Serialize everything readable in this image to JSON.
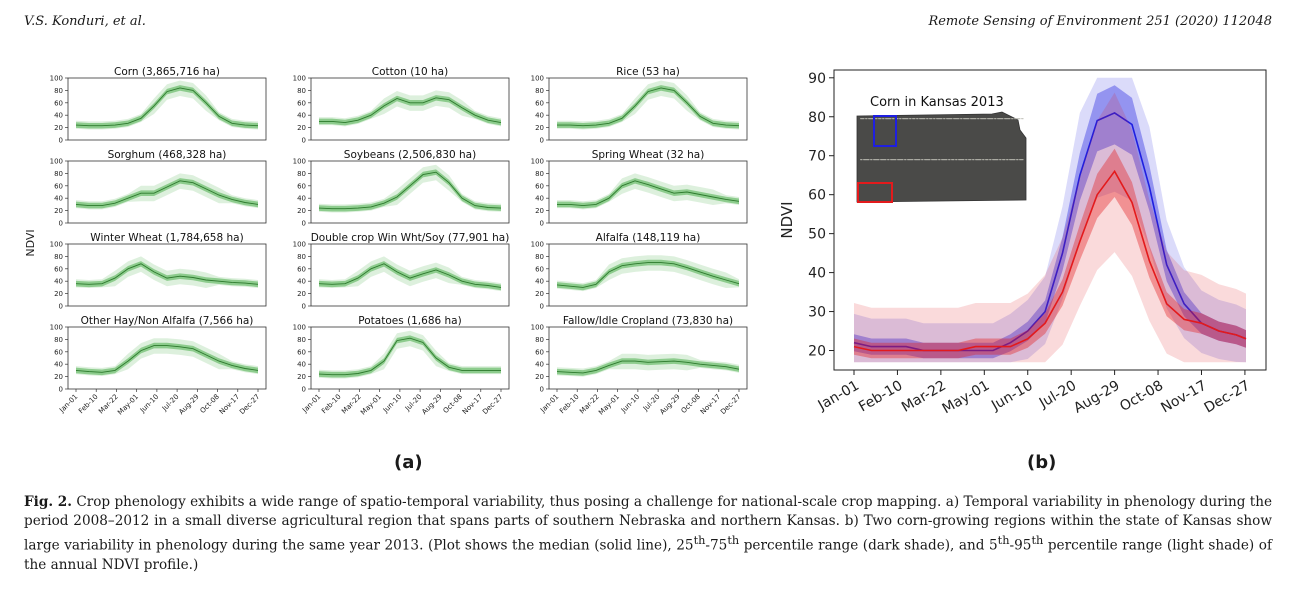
{
  "header": {
    "authors": "V.S. Konduri, et al.",
    "journal": "Remote Sensing of Environment 251 (2020) 112048"
  },
  "panels": {
    "a": "(a)",
    "b": "(b)"
  },
  "caption": {
    "fig_label": "Fig. 2.",
    "text_1": " Crop phenology exhibits a wide range of spatio-temporal variability, thus posing a challenge for national-scale crop mapping. a) Temporal variability in phenology during the period 2008–2012 in a small diverse agricultural region that spans parts of southern Nebraska and northern Kansas. b) Two corn-growing regions within the state of Kansas show large variability in phenology during the same year 2013. (Plot shows the median (solid line), 25",
    "sup_th_1": "th",
    "text_2": "-75",
    "sup_th_2": "th",
    "text_3": " percentile range (dark shade), and 5",
    "sup_th_3": "th",
    "text_4": "-95",
    "sup_th_4": "th",
    "text_5": " percentile range (light shade) of the annual NDVI profile.)"
  },
  "colors": {
    "green": "#2ca02c",
    "blue": "#1f1fe0",
    "red": "#e31a1c"
  },
  "chart_data": [
    {
      "type": "area",
      "layout": "grid-3x4",
      "ylabel": "NDVI",
      "ylim": [
        0,
        100
      ],
      "yticks": [
        0,
        20,
        40,
        60,
        80,
        100
      ],
      "xticks": [
        "Jan-01",
        "Feb-10",
        "Mar-22",
        "May-01",
        "Jun-10",
        "Jul-20",
        "Aug-29",
        "Oct-08",
        "Nov-17",
        "Dec-27"
      ],
      "panels": [
        {
          "title": "Corn (3,865,716 ha)",
          "median": [
            24,
            23,
            23,
            24,
            27,
            35,
            55,
            78,
            84,
            80,
            60,
            38,
            27,
            24,
            23
          ]
        },
        {
          "title": "Cotton (10 ha)",
          "median": [
            30,
            30,
            28,
            32,
            40,
            55,
            67,
            60,
            60,
            68,
            65,
            52,
            40,
            32,
            28
          ]
        },
        {
          "title": "Rice (53 ha)",
          "median": [
            24,
            24,
            23,
            24,
            27,
            35,
            55,
            78,
            84,
            80,
            60,
            38,
            27,
            24,
            23
          ]
        },
        {
          "title": "Sorghum (468,328 ha)",
          "median": [
            30,
            28,
            28,
            32,
            40,
            48,
            48,
            58,
            68,
            65,
            55,
            45,
            38,
            33,
            30
          ]
        },
        {
          "title": "Soybeans (2,506,830 ha)",
          "median": [
            24,
            23,
            23,
            24,
            26,
            32,
            42,
            60,
            78,
            82,
            65,
            40,
            28,
            25,
            24
          ]
        },
        {
          "title": "Spring Wheat (32 ha)",
          "median": [
            30,
            30,
            28,
            30,
            40,
            60,
            68,
            62,
            55,
            48,
            50,
            46,
            42,
            38,
            35
          ]
        },
        {
          "title": "Winter Wheat (1,784,658 ha)",
          "median": [
            36,
            35,
            36,
            45,
            60,
            68,
            55,
            45,
            48,
            46,
            42,
            40,
            38,
            37,
            35
          ]
        },
        {
          "title": "Double crop Win Wht/Soy (77,901 ha)",
          "median": [
            36,
            35,
            36,
            45,
            60,
            68,
            55,
            45,
            52,
            58,
            50,
            40,
            35,
            33,
            30
          ]
        },
        {
          "title": "Alfalfa (148,119 ha)",
          "median": [
            34,
            32,
            30,
            35,
            55,
            65,
            68,
            70,
            70,
            68,
            62,
            55,
            48,
            42,
            36
          ]
        },
        {
          "title": "Other Hay/Non Alfalfa (7,566 ha)",
          "median": [
            30,
            28,
            27,
            30,
            45,
            62,
            70,
            70,
            68,
            65,
            55,
            45,
            38,
            33,
            30
          ]
        },
        {
          "title": "Potatoes (1,686 ha)",
          "median": [
            24,
            23,
            23,
            25,
            30,
            45,
            78,
            82,
            75,
            50,
            35,
            30,
            30,
            30,
            30
          ]
        },
        {
          "title": "Fallow/Idle Cropland (73,830 ha)",
          "median": [
            28,
            27,
            26,
            30,
            38,
            45,
            45,
            43,
            44,
            45,
            43,
            40,
            38,
            36,
            32
          ]
        }
      ]
    },
    {
      "type": "line",
      "ylabel": "NDVI",
      "ylim": [
        15,
        92
      ],
      "yticks": [
        20,
        30,
        40,
        50,
        60,
        70,
        80,
        90
      ],
      "xticks": [
        "Jan-01",
        "Feb-10",
        "Mar-22",
        "May-01",
        "Jun-10",
        "Jul-20",
        "Aug-29",
        "Oct-08",
        "Nov-17",
        "Dec-27"
      ],
      "inset_title": "Corn in Kansas 2013",
      "x": [
        0,
        16,
        32,
        48,
        64,
        80,
        96,
        112,
        128,
        144,
        160,
        176,
        192,
        208,
        224,
        240,
        256,
        272,
        288,
        304,
        320,
        336,
        352,
        361
      ],
      "series": [
        {
          "color": "blue",
          "median": [
            22,
            21,
            21,
            21,
            20,
            20,
            20,
            20,
            20,
            22,
            25,
            30,
            45,
            65,
            79,
            81,
            78,
            62,
            42,
            32,
            27,
            25,
            24,
            23
          ]
        },
        {
          "color": "red",
          "median": [
            21,
            20,
            20,
            20,
            20,
            20,
            20,
            21,
            21,
            21,
            23,
            27,
            35,
            48,
            60,
            66,
            58,
            43,
            32,
            28,
            27,
            25,
            24,
            23
          ]
        }
      ]
    }
  ]
}
